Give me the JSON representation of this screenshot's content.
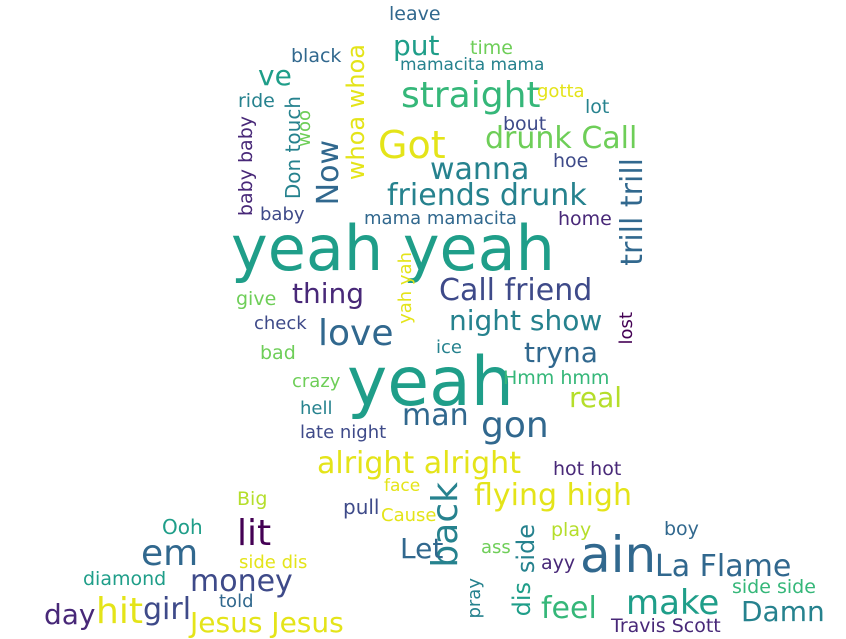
{
  "words": [
    "leave",
    "black",
    "put",
    "time",
    "mamacita mama",
    "ve",
    "whoa whoa",
    "straight",
    "gotta",
    "ride",
    "lot",
    "bout",
    "Don touch",
    "woo",
    "Got",
    "drunk Call",
    "baby baby",
    "Now",
    "wanna",
    "hoe",
    "friends drunk",
    "trill trill",
    "baby",
    "mama mamacita",
    "home",
    "yeah yeah",
    "yah yah",
    "give",
    "thing",
    "Call friend",
    "check",
    "love",
    "night show",
    "lost",
    "bad",
    "ice",
    "tryna",
    "yeah",
    "crazy",
    "Hmm hmm",
    "real",
    "hell",
    "man",
    "gon",
    "late night",
    "alright alright",
    "hot hot",
    "Big",
    "face",
    "flying high",
    "back",
    "pull",
    "Cause",
    "Ooh",
    "lit",
    "play",
    "boy",
    "side dis",
    "em",
    "Let",
    "ass",
    "side",
    "ayy",
    "ain",
    "La Flame",
    "diamond",
    "money",
    "pray",
    "dis",
    "side side",
    "day",
    "hit",
    "girl",
    "told",
    "Jesus Jesus",
    "feel",
    "make",
    "Damn",
    "Travis Scott"
  ],
  "colors": {
    "background": "#ffffff",
    "palette": [
      "#440154",
      "#482878",
      "#3e4a89",
      "#31688e",
      "#26828e",
      "#1f9e89",
      "#35b779",
      "#6ece58",
      "#b5de2b",
      "#e4e419"
    ]
  }
}
